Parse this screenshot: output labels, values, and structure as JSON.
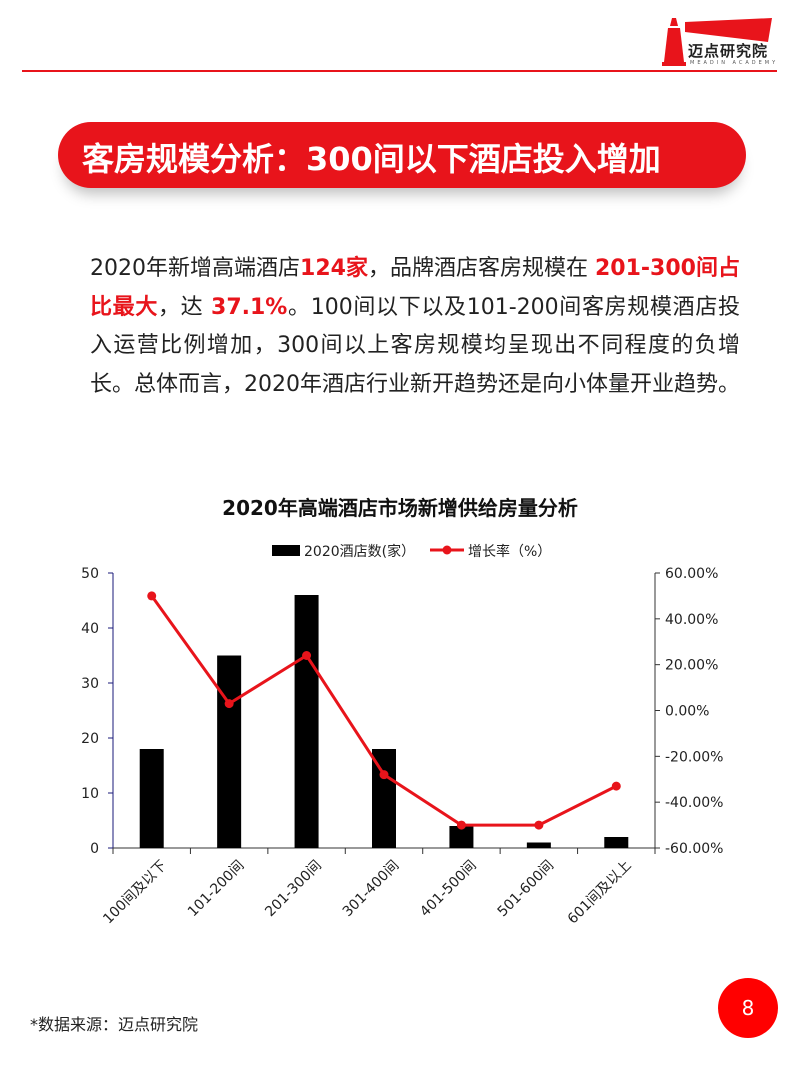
{
  "header": {
    "logo_text": "迈点研究院",
    "logo_sub": "MEADIN ACADEMY"
  },
  "banner": {
    "title": "客房规模分析：300间以下酒店投入增加"
  },
  "intro": {
    "p1": "2020年新增高端酒店",
    "h1": "124家",
    "p2": "，品牌酒店客房规模在 ",
    "h2": "201-300间占比最大",
    "p3": "，达 ",
    "h3": "37.1%",
    "p4": "。100间以下以及101-200间客房规模酒店投入运营比例增加，300间以上客房规模均呈现出不同程度的负增长。总体而言，2020年酒店行业新开趋势还是向小体量开业趋势。"
  },
  "chart_data": {
    "type": "bar+line",
    "title": "2020年高端酒店市场新增供给房量分析",
    "categories": [
      "100间及以下",
      "101-200间",
      "201-300间",
      "301-400间",
      "401-500间",
      "501-600间",
      "601间及以上"
    ],
    "series": [
      {
        "name": "2020酒店数(家）",
        "type": "bar",
        "axis": "left",
        "values": [
          18,
          35,
          46,
          18,
          4,
          1,
          2
        ],
        "color": "#000000"
      },
      {
        "name": "增长率（%）",
        "type": "line",
        "axis": "right",
        "values": [
          50,
          3,
          24,
          -28,
          -50,
          -50,
          -33
        ],
        "color": "#e8141b"
      }
    ],
    "y_left": {
      "range": [
        0,
        50
      ],
      "ticks": [
        "0",
        "10",
        "20",
        "30",
        "40",
        "50"
      ]
    },
    "y_right": {
      "range": [
        -60,
        60
      ],
      "ticks": [
        "-60.00%",
        "-40.00%",
        "-20.00%",
        "0.00%",
        "20.00%",
        "40.00%",
        "60.00%"
      ]
    },
    "legend": "top",
    "grid": false
  },
  "footer": {
    "source": "*数据来源：迈点研究院",
    "page": "8"
  }
}
